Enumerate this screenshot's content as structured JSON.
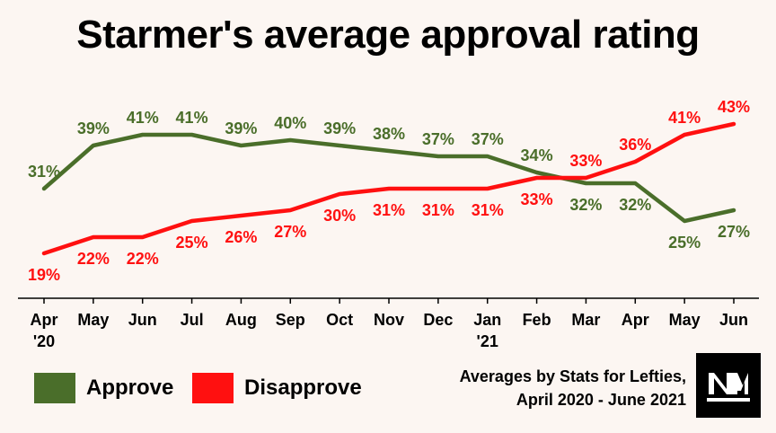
{
  "title": "Starmer's average approval rating",
  "colors": {
    "approve": "#4a6e2a",
    "disapprove": "#ff1010",
    "background": "#fcf6f2",
    "axis": "#000000"
  },
  "legend": {
    "approve": "Approve",
    "disapprove": "Disapprove"
  },
  "source": {
    "line1": "Averages by Stats for Lefties,",
    "line2": "April 2020 - June 2021"
  },
  "logo": {
    "icon": "nm-logo-icon"
  },
  "chart_data": {
    "type": "line",
    "categories": [
      [
        "Apr",
        "'20"
      ],
      [
        "May"
      ],
      [
        "Jun"
      ],
      [
        "Jul"
      ],
      [
        "Aug"
      ],
      [
        "Sep"
      ],
      [
        "Oct"
      ],
      [
        "Nov"
      ],
      [
        "Dec"
      ],
      [
        "Jan",
        "'21"
      ],
      [
        "Feb"
      ],
      [
        "Mar"
      ],
      [
        "Apr"
      ],
      [
        "May"
      ],
      [
        "Jun"
      ]
    ],
    "series": [
      {
        "name": "Approve",
        "key": "approve",
        "values": [
          31,
          39,
          41,
          41,
          39,
          40,
          39,
          38,
          37,
          37,
          34,
          32,
          32,
          25,
          27
        ],
        "label_pos": [
          "above",
          "above",
          "above",
          "above",
          "above",
          "above",
          "above",
          "above",
          "above",
          "above",
          "above",
          "below",
          "below",
          "below",
          "below"
        ]
      },
      {
        "name": "Disapprove",
        "key": "disapprove",
        "values": [
          19,
          22,
          22,
          25,
          26,
          27,
          30,
          31,
          31,
          31,
          33,
          33,
          36,
          41,
          43
        ],
        "label_pos": [
          "below",
          "below",
          "below",
          "below",
          "below",
          "below",
          "below",
          "below",
          "below",
          "below",
          "below",
          "above",
          "above",
          "above",
          "above"
        ]
      }
    ],
    "value_suffix": "%",
    "grid": false,
    "legend_position": "bottom-left"
  }
}
